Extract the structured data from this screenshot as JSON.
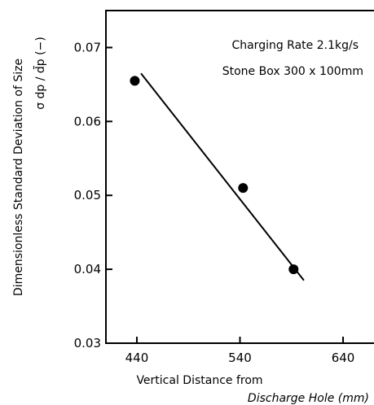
{
  "chart_data": {
    "type": "scatter",
    "title": "",
    "annotations": [
      "Charging Rate 2.1kg/s",
      "Stone Box 300 x 100mm"
    ],
    "xlabel_line1": "Vertical Distance from",
    "xlabel_line2": "Discharge Hole  (mm)",
    "ylabel_line1": "Dimensionless Standard Deviation of Size",
    "ylabel_line2": "σ dp / d̄p (−)",
    "xlim": [
      410,
      670
    ],
    "ylim": [
      0.03,
      0.075
    ],
    "xticks": [
      440,
      540,
      640
    ],
    "xtick_labels": [
      "440",
      "540",
      "640"
    ],
    "yticks": [
      0.03,
      0.04,
      0.05,
      0.06,
      0.07
    ],
    "ytick_labels": [
      "0.03",
      "0.04",
      "0.05",
      "0.06",
      "0.07"
    ],
    "series": [
      {
        "points": [
          {
            "x": 438,
            "y": 0.0655
          },
          {
            "x": 543,
            "y": 0.051
          },
          {
            "x": 592,
            "y": 0.04
          }
        ]
      }
    ],
    "fit_line": {
      "x": [
        444,
        602
      ],
      "y": [
        0.0665,
        0.0385
      ]
    },
    "grid": false
  },
  "colors": {
    "ink": "#000000",
    "background": "#ffffff"
  }
}
